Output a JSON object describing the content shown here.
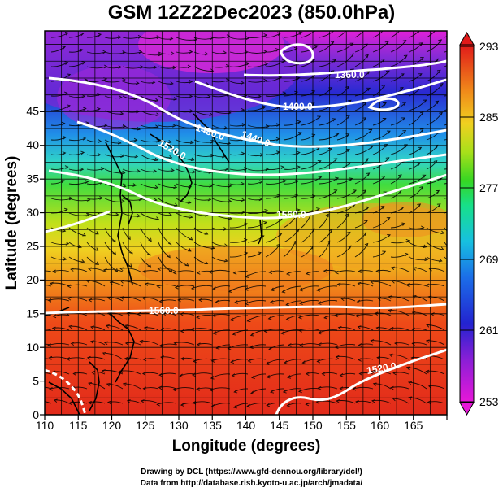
{
  "title": "GSM 12Z22Dec2023 (850.0hPa)",
  "x_axis": {
    "label": "Longitude (degrees)",
    "ticks": [
      "110",
      "115",
      "120",
      "125",
      "130",
      "135",
      "140",
      "145",
      "150",
      "155",
      "160",
      "165"
    ]
  },
  "y_axis": {
    "label": "Latitude  (degrees)",
    "ticks": [
      "0",
      "5",
      "10",
      "15",
      "20",
      "25",
      "30",
      "35",
      "40",
      "45"
    ]
  },
  "colorbar": {
    "labels": [
      "253",
      "261",
      "269",
      "277",
      "285",
      "293"
    ]
  },
  "contour_labels": [
    "1360.0",
    "1400.0",
    "1440.0",
    "1480.0",
    "1520.0",
    "1560.0",
    "1560.0",
    "1520.0"
  ],
  "credits": [
    "Drawing by DCL (https://www.gfd-dennou.org/library/dcl/)",
    "Data from http://database.rish.kyoto-u.ac.jp/arch/jmadata/"
  ],
  "colors": {
    "colormap": [
      "#e817d9",
      "#a022d8",
      "#2323d0",
      "#1b6ee8",
      "#17c0e0",
      "#17e08a",
      "#36d623",
      "#a8e01a",
      "#f0e020",
      "#f5a21a",
      "#f04a17",
      "#e01a1a"
    ],
    "contour": "#ffffff",
    "coastline": "#000000",
    "streamline": "#000000"
  }
}
